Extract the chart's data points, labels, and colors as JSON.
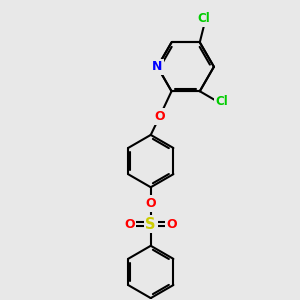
{
  "bg_color": "#e8e8e8",
  "bond_color": "#000000",
  "bond_width": 1.5,
  "atom_colors": {
    "Cl": "#00cc00",
    "N": "#0000ff",
    "O": "#ff0000",
    "S": "#cccc00",
    "C": "#000000"
  },
  "font_size": 8.5,
  "fig_bg": "#e8e8e8"
}
